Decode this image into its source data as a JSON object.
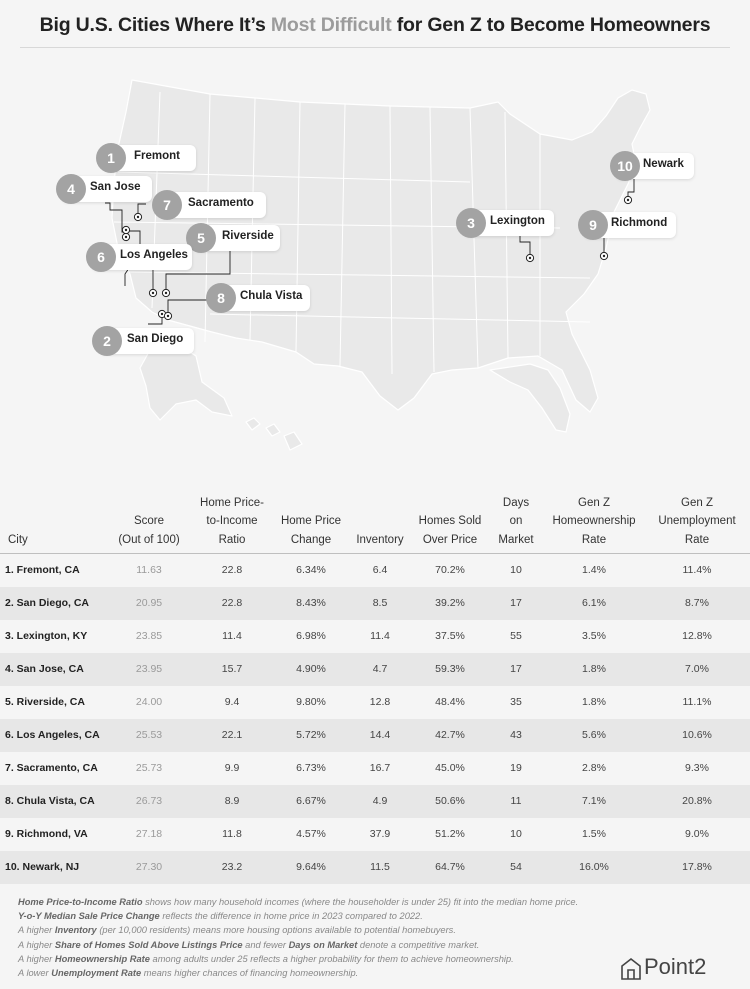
{
  "header": {
    "title_before": "Big U.S. Cities Where It’s ",
    "title_highlight": "Most Difficult",
    "title_after": " for Gen Z to Become Homeowners"
  },
  "colors": {
    "highlight": "#9c9c9c",
    "badge": "#a3a3a3",
    "map_fill": "#e9e9e9",
    "map_stroke": "#ffffff"
  },
  "map_labels": [
    {
      "rank": "1",
      "city": "Fremont"
    },
    {
      "rank": "2",
      "city": "San Diego"
    },
    {
      "rank": "3",
      "city": "Lexington"
    },
    {
      "rank": "4",
      "city": "San Jose"
    },
    {
      "rank": "5",
      "city": "Riverside"
    },
    {
      "rank": "6",
      "city": "Los Angeles"
    },
    {
      "rank": "7",
      "city": "Sacramento"
    },
    {
      "rank": "8",
      "city": "Chula Vista"
    },
    {
      "rank": "9",
      "city": "Richmond"
    },
    {
      "rank": "10",
      "city": "Newark"
    }
  ],
  "chart_data": {
    "type": "table",
    "columns": [
      "City",
      "Score\n(Out of 100)",
      "Home Price-\nto-Income\nRatio",
      "Home Price\nChange",
      "Inventory",
      "Homes Sold\nOver Price",
      "Days\non\nMarket",
      "Gen Z\nHomeownership\nRate",
      "Gen Z\nUnemployment\nRate"
    ],
    "rows": [
      [
        "1. Fremont, CA",
        "11.63",
        "22.8",
        "6.34%",
        "6.4",
        "70.2%",
        "10",
        "1.4%",
        "11.4%"
      ],
      [
        "2. San Diego, CA",
        "20.95",
        "22.8",
        "8.43%",
        "8.5",
        "39.2%",
        "17",
        "6.1%",
        "8.7%"
      ],
      [
        "3. Lexington, KY",
        "23.85",
        "11.4",
        "6.98%",
        "11.4",
        "37.5%",
        "55",
        "3.5%",
        "12.8%"
      ],
      [
        "4. San Jose, CA",
        "23.95",
        "15.7",
        "4.90%",
        "4.7",
        "59.3%",
        "17",
        "1.8%",
        "7.0%"
      ],
      [
        "5. Riverside, CA",
        "24.00",
        "9.4",
        "9.80%",
        "12.8",
        "48.4%",
        "35",
        "1.8%",
        "11.1%"
      ],
      [
        "6. Los Angeles, CA",
        "25.53",
        "22.1",
        "5.72%",
        "14.4",
        "42.7%",
        "43",
        "5.6%",
        "10.6%"
      ],
      [
        "7. Sacramento, CA",
        "25.73",
        "9.9",
        "6.73%",
        "16.7",
        "45.0%",
        "19",
        "2.8%",
        "9.3%"
      ],
      [
        "8. Chula Vista, CA",
        "26.73",
        "8.9",
        "6.67%",
        "4.9",
        "50.6%",
        "11",
        "7.1%",
        "20.8%"
      ],
      [
        "9. Richmond, VA",
        "27.18",
        "11.8",
        "4.57%",
        "37.9",
        "51.2%",
        "10",
        "1.5%",
        "9.0%"
      ],
      [
        "10. Newark, NJ",
        "27.30",
        "23.2",
        "9.64%",
        "11.5",
        "64.7%",
        "54",
        "16.0%",
        "17.8%"
      ]
    ]
  },
  "notes": [
    {
      "bold": "Home Price-to-Income Ratio",
      "text": " shows how many household incomes (where the householder is under 25) fit into the median home price."
    },
    {
      "bold": "Y-o-Y Median Sale Price Change",
      "text": " reflects the difference in home price in 2023 compared to 2022."
    },
    {
      "pre": "A higher ",
      "bold": "Inventory",
      "text": " (per 10,000 residents) means more housing options available to potential homebuyers."
    },
    {
      "pre": "A higher ",
      "bold": "Share of Homes Sold Above Listings Price",
      "mid": " and fewer ",
      "bold2": "Days on Market",
      "text": " denote a competitive market."
    },
    {
      "pre": "A higher ",
      "bold": "Homeownership Rate",
      "text": " among adults under 25 reflects a higher probability for them to achieve homeownership."
    },
    {
      "pre": "A lower ",
      "bold": "Unemployment Rate",
      "text": " means higher chances of financing homeownership."
    }
  ],
  "brand": {
    "name": "Point2"
  }
}
